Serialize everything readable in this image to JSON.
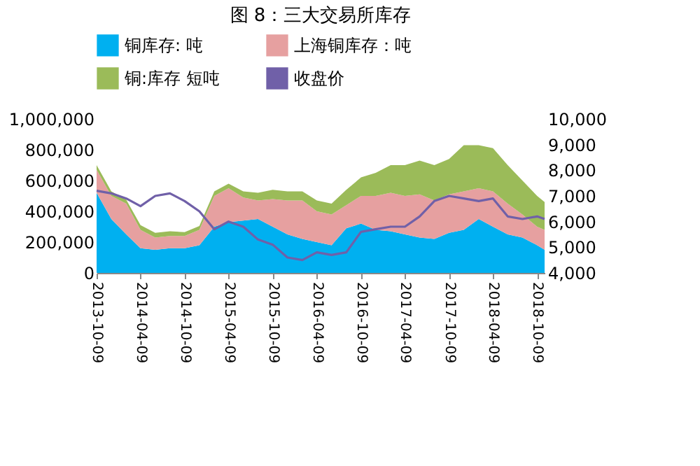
{
  "chart_data": {
    "type": "area",
    "stacked": true,
    "title": "图 8：三大交易所库存",
    "x": [
      "2013-10-09",
      "2013-12-09",
      "2014-02-09",
      "2014-04-09",
      "2014-06-09",
      "2014-08-09",
      "2014-10-09",
      "2014-12-09",
      "2015-02-09",
      "2015-04-09",
      "2015-06-09",
      "2015-08-09",
      "2015-10-09",
      "2015-12-09",
      "2016-02-09",
      "2016-04-09",
      "2016-06-09",
      "2016-08-09",
      "2016-10-09",
      "2016-12-09",
      "2017-02-09",
      "2017-04-09",
      "2017-06-09",
      "2017-08-09",
      "2017-10-09",
      "2017-12-09",
      "2018-02-09",
      "2018-04-09",
      "2018-06-09",
      "2018-08-09",
      "2018-10-09",
      "2018-11-09"
    ],
    "series": [
      {
        "name": "铜库存: 吨",
        "color": "#00b0f0",
        "values": [
          520000,
          350000,
          250000,
          160000,
          150000,
          160000,
          160000,
          180000,
          300000,
          330000,
          340000,
          350000,
          300000,
          250000,
          220000,
          200000,
          180000,
          290000,
          320000,
          280000,
          270000,
          250000,
          230000,
          220000,
          260000,
          280000,
          350000,
          300000,
          250000,
          230000,
          180000,
          150000
        ]
      },
      {
        "name": "上海铜库存：吨",
        "color": "#e6a0a0",
        "values": [
          150000,
          150000,
          200000,
          120000,
          80000,
          80000,
          80000,
          100000,
          200000,
          220000,
          150000,
          120000,
          180000,
          220000,
          250000,
          200000,
          200000,
          150000,
          180000,
          220000,
          250000,
          250000,
          280000,
          250000,
          250000,
          250000,
          200000,
          230000,
          200000,
          150000,
          120000,
          130000
        ]
      },
      {
        "name": "铜:库存 短吨",
        "color": "#9bbb59",
        "values": [
          30000,
          30000,
          25000,
          30000,
          30000,
          30000,
          25000,
          25000,
          30000,
          30000,
          40000,
          50000,
          60000,
          60000,
          60000,
          70000,
          70000,
          100000,
          120000,
          150000,
          180000,
          200000,
          220000,
          230000,
          230000,
          300000,
          280000,
          280000,
          250000,
          220000,
          200000,
          180000
        ]
      },
      {
        "name": "收盘价",
        "color": "#7060a8",
        "type": "line",
        "axis": "y2",
        "values": [
          7200,
          7100,
          6900,
          6600,
          7000,
          7100,
          6800,
          6400,
          5700,
          6000,
          5800,
          5300,
          5100,
          4600,
          4500,
          4800,
          4700,
          4800,
          5600,
          5700,
          5800,
          5800,
          6200,
          6800,
          7000,
          6900,
          6800,
          6900,
          6200,
          6100,
          6200,
          6100
        ]
      }
    ],
    "xlim": [
      "2013-10-09",
      "2018-11-09"
    ],
    "xticks": [
      "2013-10-09",
      "2014-04-09",
      "2014-10-09",
      "2015-04-09",
      "2015-10-09",
      "2016-04-09",
      "2016-10-09",
      "2017-04-09",
      "2017-10-09",
      "2018-04-09",
      "2018-10-09"
    ],
    "ylim": [
      0,
      1000000
    ],
    "yticks": [
      0,
      {
        "value": 200000,
        "label": "200,000"
      },
      {
        "value": 400000,
        "label": "400,000"
      },
      {
        "value": 600000,
        "label": "600,000"
      },
      {
        "value": 800000,
        "label": "800,000"
      },
      {
        "value": 1000000,
        "label": "1,000,000"
      }
    ],
    "y2lim": [
      4000,
      10000
    ],
    "y2ticks": [
      {
        "value": 4000,
        "label": "4,000"
      },
      {
        "value": 5000,
        "label": "5,000"
      },
      {
        "value": 6000,
        "label": "6,000"
      },
      {
        "value": 7000,
        "label": "7,000"
      },
      {
        "value": 8000,
        "label": "8,000"
      },
      {
        "value": 9000,
        "label": "9,000"
      },
      {
        "value": 10000,
        "label": "10,000"
      }
    ],
    "legend": "top",
    "grid": false
  }
}
